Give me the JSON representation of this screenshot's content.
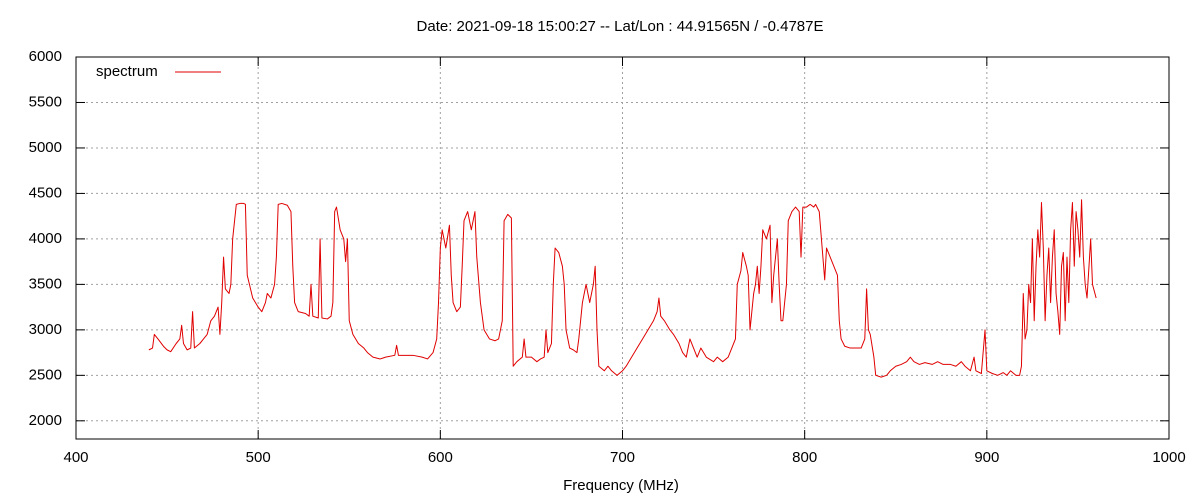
{
  "chart_data": {
    "type": "line",
    "title": "Date: 2021-09-18 15:00:27  --  Lat/Lon : 44.91565N / -0.4787E",
    "x_label": "Frequency (MHz)",
    "xlim": [
      400,
      1000
    ],
    "ylim": [
      1800,
      6000
    ],
    "xticks": [
      400,
      500,
      600,
      700,
      800,
      900,
      1000
    ],
    "yticks": [
      2000,
      2500,
      3000,
      3500,
      4000,
      4500,
      5000,
      5500,
      6000
    ],
    "grid": true,
    "legend": "top-left",
    "x": [
      440,
      442,
      443,
      445,
      448,
      450,
      452,
      455,
      457,
      458,
      459,
      461,
      463,
      464,
      465,
      468,
      470,
      472,
      474,
      476,
      478,
      479,
      480,
      481,
      482,
      484,
      485,
      486,
      488,
      490,
      492,
      493,
      494,
      497,
      500,
      502,
      504,
      505,
      507,
      509,
      510,
      511,
      513,
      516,
      518,
      519,
      520,
      522,
      526,
      528,
      529,
      530,
      533,
      534,
      535,
      538,
      540,
      541,
      542,
      543,
      545,
      547,
      548,
      549,
      550,
      552,
      555,
      558,
      560,
      563,
      567,
      570,
      575,
      576,
      577,
      580,
      585,
      590,
      593,
      596,
      598,
      599,
      600,
      601,
      603,
      605,
      606,
      607,
      609,
      611,
      612,
      613,
      615,
      617,
      619,
      620,
      622,
      624,
      627,
      630,
      632,
      634,
      635,
      637,
      639,
      640,
      642,
      645,
      646,
      647,
      650,
      653,
      655,
      657,
      658,
      659,
      661,
      662,
      663,
      665,
      667,
      668,
      669,
      671,
      673,
      675,
      676,
      678,
      680,
      682,
      684,
      685,
      686,
      687,
      690,
      692,
      694,
      697,
      700,
      702,
      705,
      708,
      711,
      714,
      717,
      719,
      720,
      721,
      723,
      726,
      728,
      731,
      733,
      735,
      737,
      739,
      741,
      743,
      746,
      750,
      752,
      755,
      758,
      760,
      762,
      763,
      765,
      766,
      768,
      769,
      770,
      772,
      773,
      774,
      775,
      776,
      777,
      779,
      781,
      782,
      783,
      785,
      786,
      787,
      788,
      790,
      791,
      793,
      795,
      797,
      798,
      799,
      801,
      803,
      805,
      806,
      808,
      810,
      811,
      812,
      814,
      816,
      818,
      819,
      820,
      822,
      825,
      828,
      831,
      833,
      834,
      835,
      836,
      838,
      839,
      842,
      845,
      847,
      850,
      853,
      856,
      858,
      860,
      863,
      866,
      870,
      873,
      876,
      880,
      883,
      886,
      888,
      891,
      893,
      894,
      897,
      899,
      900,
      903,
      906,
      909,
      911,
      913,
      916,
      918,
      919,
      920,
      921,
      922,
      923,
      924,
      925,
      926,
      927,
      928,
      929,
      930,
      931,
      932,
      933,
      934,
      935,
      936,
      937,
      938,
      939,
      940,
      941,
      942,
      943,
      944,
      945,
      946,
      947,
      948,
      949,
      950,
      951,
      952,
      953,
      954,
      955,
      957,
      958,
      960
    ],
    "series": [
      {
        "name": "spectrum",
        "color": "#e00000",
        "values": [
          2780,
          2800,
          2950,
          2900,
          2820,
          2780,
          2760,
          2850,
          2900,
          3050,
          2850,
          2780,
          2800,
          3200,
          2800,
          2850,
          2900,
          2950,
          3100,
          3150,
          3250,
          2950,
          3300,
          3800,
          3450,
          3400,
          3500,
          4000,
          4380,
          4390,
          4390,
          4380,
          3600,
          3350,
          3250,
          3200,
          3300,
          3400,
          3350,
          3500,
          3800,
          4380,
          4390,
          4370,
          4300,
          3700,
          3300,
          3200,
          3180,
          3150,
          3500,
          3150,
          3130,
          4000,
          3130,
          3120,
          3150,
          3300,
          4300,
          4350,
          4100,
          4000,
          3750,
          4000,
          3100,
          2950,
          2850,
          2800,
          2750,
          2700,
          2680,
          2700,
          2720,
          2830,
          2720,
          2720,
          2720,
          2700,
          2680,
          2750,
          2900,
          3300,
          3900,
          4100,
          3900,
          4150,
          3600,
          3300,
          3200,
          3250,
          3700,
          4200,
          4300,
          4100,
          4300,
          3800,
          3300,
          3000,
          2900,
          2880,
          2900,
          3100,
          4200,
          4270,
          4230,
          2600,
          2650,
          2700,
          2900,
          2700,
          2700,
          2650,
          2680,
          2700,
          3000,
          2750,
          2850,
          3500,
          3900,
          3850,
          3700,
          3500,
          3000,
          2800,
          2780,
          2750,
          2900,
          3300,
          3500,
          3300,
          3500,
          3700,
          3000,
          2600,
          2550,
          2600,
          2550,
          2500,
          2550,
          2600,
          2700,
          2800,
          2900,
          3000,
          3100,
          3200,
          3350,
          3150,
          3100,
          3000,
          2950,
          2850,
          2750,
          2700,
          2900,
          2800,
          2700,
          2800,
          2700,
          2650,
          2700,
          2650,
          2700,
          2800,
          2900,
          3500,
          3650,
          3850,
          3700,
          3600,
          3000,
          3400,
          3500,
          3700,
          3400,
          3700,
          4100,
          4000,
          4150,
          3300,
          3600,
          4000,
          3500,
          3100,
          3100,
          3500,
          4200,
          4300,
          4350,
          4300,
          3800,
          4350,
          4350,
          4380,
          4350,
          4380,
          4300,
          3800,
          3550,
          3900,
          3800,
          3700,
          3600,
          3100,
          2900,
          2820,
          2800,
          2800,
          2800,
          2900,
          3450,
          3000,
          2950,
          2700,
          2500,
          2480,
          2500,
          2550,
          2600,
          2620,
          2650,
          2700,
          2650,
          2620,
          2640,
          2620,
          2650,
          2620,
          2620,
          2600,
          2650,
          2600,
          2550,
          2700,
          2550,
          2520,
          3000,
          2550,
          2520,
          2500,
          2530,
          2500,
          2550,
          2500,
          2500,
          2600,
          3400,
          2900,
          3000,
          3500,
          3300,
          4000,
          3100,
          3700,
          4100,
          3800,
          4400,
          3900,
          3100,
          3600,
          3900,
          3300,
          3800,
          4100,
          3400,
          3200,
          2950,
          3700,
          3850,
          3100,
          3800,
          3300,
          4100,
          4400,
          3700,
          4300,
          4100,
          3800,
          4430,
          3800,
          3500,
          3350,
          4000,
          3500,
          3350
        ]
      }
    ]
  }
}
